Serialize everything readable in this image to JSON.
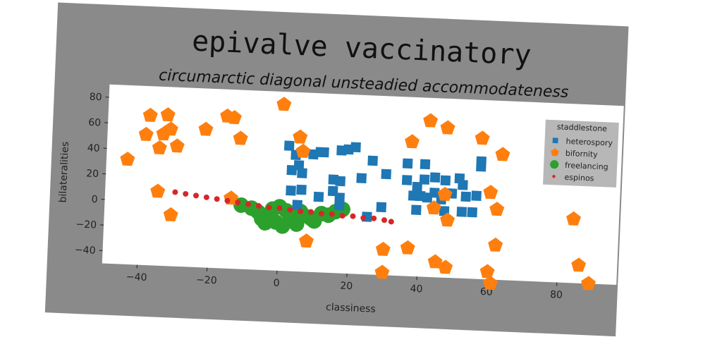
{
  "chart_data": {
    "type": "scatter",
    "title": "epivalve vaccinatory",
    "subtitle": "circumarctic diagonal unsteadied accommodateness",
    "xlabel": "classiness",
    "ylabel": "bilateralities",
    "xlim": [
      -50,
      97
    ],
    "ylim": [
      -50,
      90
    ],
    "xticks": [
      -40,
      -20,
      0,
      20,
      40,
      60,
      80
    ],
    "yticks": [
      -40,
      -20,
      0,
      20,
      40,
      60,
      80
    ],
    "grid": false,
    "legend": {
      "title": "staddlestone",
      "placement": "top-right"
    },
    "series": [
      {
        "name": "heterospory",
        "marker": "square",
        "color": "#1f77b4",
        "points": [
          [
            2,
            48
          ],
          [
            4,
            41
          ],
          [
            5,
            33
          ],
          [
            3,
            29
          ],
          [
            6,
            27
          ],
          [
            9,
            42
          ],
          [
            11,
            44
          ],
          [
            12,
            44
          ],
          [
            17,
            46
          ],
          [
            19,
            47
          ],
          [
            21,
            49
          ],
          [
            26,
            39
          ],
          [
            30,
            29
          ],
          [
            23,
            25
          ],
          [
            15,
            23
          ],
          [
            17,
            22
          ],
          [
            15,
            14
          ],
          [
            11,
            9
          ],
          [
            6,
            14
          ],
          [
            3,
            13
          ],
          [
            17,
            9
          ],
          [
            17,
            3
          ],
          [
            5,
            2
          ],
          [
            25,
            -5
          ],
          [
            29,
            3
          ],
          [
            36,
            38
          ],
          [
            36,
            25
          ],
          [
            39,
            20
          ],
          [
            41,
            38
          ],
          [
            41,
            26
          ],
          [
            44,
            28
          ],
          [
            40,
            13
          ],
          [
            42,
            12
          ],
          [
            38,
            13
          ],
          [
            44,
            16
          ],
          [
            47,
            26
          ],
          [
            49,
            16
          ],
          [
            51,
            28
          ],
          [
            52,
            23
          ],
          [
            53,
            14
          ],
          [
            56,
            15
          ],
          [
            55,
            2
          ],
          [
            52,
            2
          ],
          [
            57,
            38
          ],
          [
            57,
            42
          ],
          [
            46,
            11
          ],
          [
            39,
            2
          ],
          [
            47,
            2
          ]
        ]
      },
      {
        "name": "bifornity",
        "marker": "pentagon",
        "color": "#ff7f0e",
        "points": [
          [
            0,
            80
          ],
          [
            -38,
            67
          ],
          [
            -33,
            68
          ],
          [
            -32,
            57
          ],
          [
            -34,
            53
          ],
          [
            -39,
            52
          ],
          [
            -22,
            58
          ],
          [
            -16,
            69
          ],
          [
            -14,
            68
          ],
          [
            -12,
            52
          ],
          [
            -35,
            42
          ],
          [
            -30,
            44
          ],
          [
            -44,
            32
          ],
          [
            -35,
            8
          ],
          [
            -31,
            -10
          ],
          [
            -14,
            5
          ],
          [
            5,
            55
          ],
          [
            6,
            44
          ],
          [
            8,
            -26
          ],
          [
            37,
            55
          ],
          [
            42,
            72
          ],
          [
            47,
            67
          ],
          [
            57,
            60
          ],
          [
            63,
            48
          ],
          [
            60,
            18
          ],
          [
            62,
            5
          ],
          [
            44,
            4
          ],
          [
            48,
            -5
          ],
          [
            47,
            15
          ],
          [
            62,
            -23
          ],
          [
            30,
            -30
          ],
          [
            37,
            -28
          ],
          [
            45,
            -38
          ],
          [
            48,
            -42
          ],
          [
            60,
            -44
          ],
          [
            61,
            -53
          ],
          [
            30,
            -48
          ],
          [
            86,
            -36
          ],
          [
            89,
            -50
          ],
          [
            84,
            0
          ]
        ]
      },
      {
        "name": "freelancing",
        "marker": "circle",
        "color": "#2ca02c",
        "points": [
          [
            -11,
            0
          ],
          [
            -8,
            -2
          ],
          [
            -6,
            -5
          ],
          [
            -5,
            -10
          ],
          [
            -3,
            -7
          ],
          [
            -4,
            -13
          ],
          [
            -1,
            -12
          ],
          [
            1,
            -15
          ],
          [
            3,
            -10
          ],
          [
            5,
            -13
          ],
          [
            7,
            -6
          ],
          [
            9,
            -8
          ],
          [
            10,
            -10
          ],
          [
            12,
            -4
          ],
          [
            14,
            -5
          ],
          [
            16,
            -2
          ],
          [
            18,
            0
          ],
          [
            2,
            -3
          ],
          [
            -2,
            -2
          ],
          [
            0,
            0
          ],
          [
            6,
            -3
          ]
        ]
      },
      {
        "name": "espinos",
        "marker": "point",
        "color": "#d62728",
        "points": [
          [
            -30,
            8
          ],
          [
            -27,
            7
          ],
          [
            -24,
            6
          ],
          [
            -21,
            5
          ],
          [
            -18,
            4
          ],
          [
            -15,
            3
          ],
          [
            -12,
            2
          ],
          [
            -9,
            1
          ],
          [
            -6,
            0
          ],
          [
            -3,
            -1
          ],
          [
            0,
            -1
          ],
          [
            3,
            -2
          ],
          [
            6,
            -3
          ],
          [
            9,
            -3
          ],
          [
            12,
            -4
          ],
          [
            15,
            -4
          ],
          [
            18,
            -5
          ],
          [
            21,
            -5
          ],
          [
            24,
            -6
          ],
          [
            27,
            -6
          ],
          [
            30,
            -7
          ],
          [
            32,
            -8
          ]
        ]
      }
    ]
  }
}
